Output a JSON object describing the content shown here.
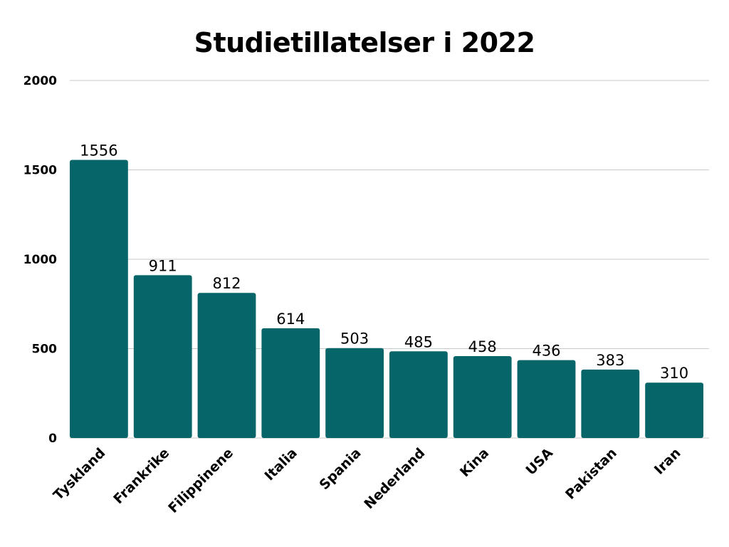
{
  "chart_data": {
    "type": "bar",
    "title": "Studietillatelser i 2022",
    "xlabel": "",
    "ylabel": "",
    "categories": [
      "Tyskland",
      "Frankrike",
      "Filippinene",
      "Italia",
      "Spania",
      "Nederland",
      "Kina",
      "USA",
      "Pakistan",
      "Iran"
    ],
    "values": [
      1556,
      911,
      812,
      614,
      503,
      485,
      458,
      436,
      383,
      310
    ],
    "ylim": [
      0,
      2000
    ],
    "yticks": [
      0,
      500,
      1000,
      1500,
      2000
    ],
    "grid": true,
    "bar_color": "#066569"
  }
}
